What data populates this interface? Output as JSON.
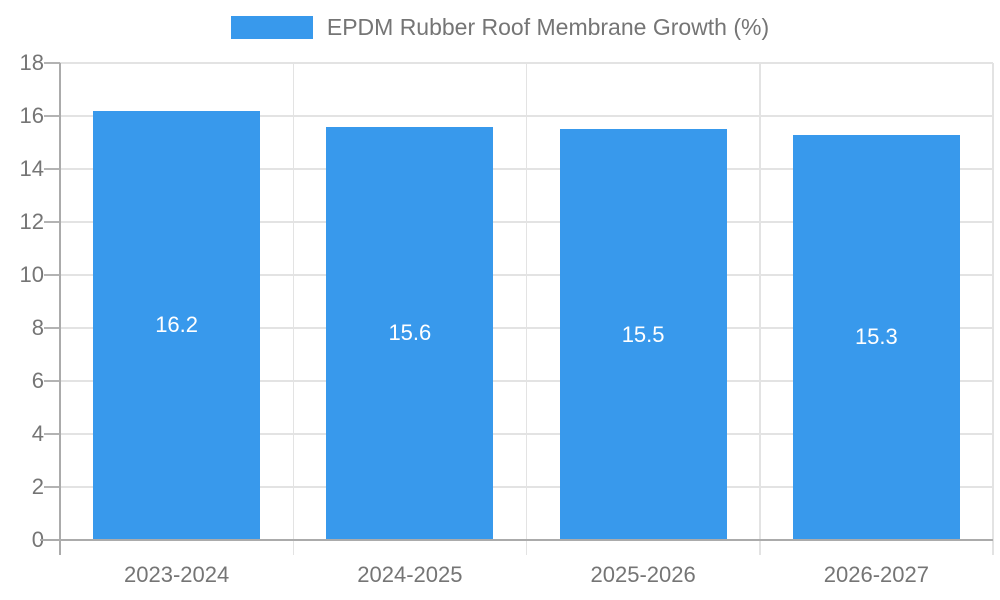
{
  "legend": {
    "label": "EPDM Rubber Roof Membrane Growth (%)"
  },
  "colors": {
    "bar": "#3899EC",
    "axis": "#ababab",
    "grid": "#e3e3e3",
    "tick": "#b3b3b3",
    "text": "#757575",
    "value_label": "#ffffff",
    "background": "#ffffff"
  },
  "chart_data": {
    "type": "bar",
    "title": "EPDM Rubber Roof Membrane Growth (%)",
    "categories": [
      "2023-2024",
      "2024-2025",
      "2025-2026",
      "2026-2027"
    ],
    "values": [
      16.2,
      15.6,
      15.5,
      15.3
    ],
    "bar_labels": [
      "16.2",
      "15.6",
      "15.5",
      "15.3"
    ],
    "xlabel": "",
    "ylabel": "",
    "ylim": [
      0,
      18
    ],
    "yticks": [
      0,
      2,
      4,
      6,
      8,
      10,
      12,
      14,
      16,
      18
    ],
    "grid": "both",
    "legend_position": "top-center",
    "bar_label_position": "center-inside",
    "bar_label_color": "#ffffff"
  }
}
